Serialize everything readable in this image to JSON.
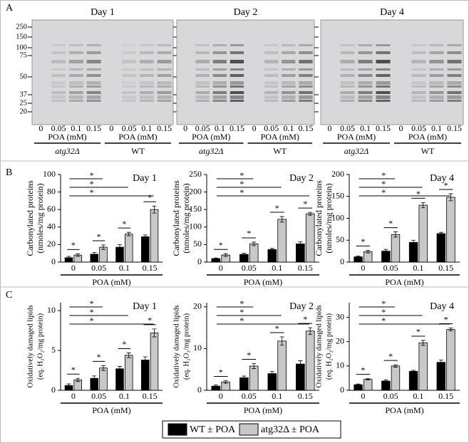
{
  "blots": {
    "panel_label": "A",
    "days": [
      "Day 1",
      "Day 2",
      "Day 4"
    ],
    "markers": [
      250,
      150,
      100,
      75,
      50,
      37,
      25,
      20
    ],
    "lanes": [
      "0",
      "0.05",
      "0.1",
      "0.15"
    ],
    "axis_label": "POA (mM)",
    "strains": [
      "atg32Δ",
      "WT"
    ]
  },
  "panel_labels": [
    "B",
    "C"
  ],
  "chart_data": [
    {
      "type": "bar",
      "title": "Day 1",
      "ylabel": [
        "Carbonylated proteins",
        "(nmoles/mg protein)"
      ],
      "xlabel": "POA (mM)",
      "categories": [
        "0",
        "0.05",
        "0.1",
        "0.15"
      ],
      "series": [
        {
          "name": "WT ± POA",
          "color": "#000000",
          "values": [
            5,
            9,
            17,
            29
          ],
          "errors": [
            1.5,
            2,
            3,
            2
          ]
        },
        {
          "name": "atg32Δ ± POA",
          "color": "#c8c8c8",
          "values": [
            8,
            17,
            32,
            60
          ],
          "errors": [
            1.5,
            2.5,
            2,
            4
          ]
        }
      ],
      "ylim": [
        0,
        100
      ],
      "yticks": [
        0,
        20,
        40,
        60,
        80,
        100
      ],
      "annotations": [
        "*",
        "*",
        "*",
        "*",
        "*",
        "*",
        "*"
      ]
    },
    {
      "type": "bar",
      "title": "Day 2",
      "ylabel": [
        "Carbonylated proteins",
        "(nmoles/mg protein)"
      ],
      "xlabel": "POA (mM)",
      "categories": [
        "0",
        "0.05",
        "0.1",
        "0.15"
      ],
      "series": [
        {
          "name": "WT ± POA",
          "color": "#000000",
          "values": [
            10,
            22,
            36,
            52
          ],
          "errors": [
            2,
            3,
            3,
            6
          ]
        },
        {
          "name": "atg32Δ ± POA",
          "color": "#c8c8c8",
          "values": [
            20,
            52,
            122,
            138
          ],
          "errors": [
            4,
            5,
            8,
            4
          ]
        }
      ],
      "ylim": [
        0,
        250
      ],
      "yticks": [
        0,
        50,
        100,
        150,
        200,
        250
      ],
      "annotations": [
        "*",
        "*",
        "*",
        "*",
        "*",
        "*",
        "*"
      ]
    },
    {
      "type": "bar",
      "title": "Day 4",
      "ylabel": [
        "Carbonylated proteins",
        "(nmoles/mg protein)"
      ],
      "xlabel": "POA (mM)",
      "categories": [
        "0",
        "0.05",
        "0.1",
        "0.15"
      ],
      "series": [
        {
          "name": "WT ± POA",
          "color": "#000000",
          "values": [
            12,
            25,
            45,
            65
          ],
          "errors": [
            2,
            4,
            5,
            3
          ]
        },
        {
          "name": "atg32Δ ± POA",
          "color": "#c8c8c8",
          "values": [
            24,
            63,
            130,
            148
          ],
          "errors": [
            3,
            6,
            6,
            8
          ]
        }
      ],
      "ylim": [
        0,
        200
      ],
      "yticks": [
        0,
        50,
        100,
        150,
        200
      ],
      "annotations": [
        "*",
        "*",
        "*",
        "*",
        "*",
        "*",
        "*"
      ]
    },
    {
      "type": "bar",
      "title": "Day 1",
      "ylabel": [
        "Oxidatively damaged lipids",
        "(eq. H₂O₂/mg protein)"
      ],
      "xlabel": "POA (mM)",
      "categories": [
        "0",
        "0.05",
        "0.1",
        "0.15"
      ],
      "series": [
        {
          "name": "WT ± POA",
          "color": "#000000",
          "values": [
            0.6,
            1.5,
            2.7,
            3.8
          ],
          "errors": [
            0.2,
            0.3,
            0.3,
            0.4
          ]
        },
        {
          "name": "atg32Δ ± POA",
          "color": "#c8c8c8",
          "values": [
            1.3,
            2.8,
            4.4,
            7.2
          ],
          "errors": [
            0.2,
            0.3,
            0.3,
            0.5
          ]
        }
      ],
      "ylim": [
        0,
        11
      ],
      "yticks": [
        0,
        5,
        10
      ],
      "annotations": [
        "*",
        "*",
        "*",
        "*",
        "*",
        "*",
        "*"
      ]
    },
    {
      "type": "bar",
      "title": "Day 2",
      "ylabel": [
        "Oxidatively damaged lipids",
        "(eq. H₂O₂/mg protein)"
      ],
      "xlabel": "POA (mM)",
      "categories": [
        "0",
        "0.05",
        "0.1",
        "0.15"
      ],
      "series": [
        {
          "name": "WT ± POA",
          "color": "#000000",
          "values": [
            1,
            3,
            4,
            6.3
          ],
          "errors": [
            0.3,
            0.4,
            0.5,
            0.8
          ]
        },
        {
          "name": "atg32Δ ± POA",
          "color": "#c8c8c8",
          "values": [
            2,
            5.8,
            11.8,
            14.2
          ],
          "errors": [
            0.3,
            0.6,
            1,
            0.8
          ]
        }
      ],
      "ylim": [
        0,
        21
      ],
      "yticks": [
        0,
        10,
        20
      ],
      "annotations": [
        "*",
        "*",
        "*",
        "*",
        "*",
        "*",
        "*"
      ]
    },
    {
      "type": "bar",
      "title": "Day 4",
      "ylabel": [
        "Oxidatively damaged lipids",
        "(eq. H₂O₂/mg protein)"
      ],
      "xlabel": "POA (mM)",
      "categories": [
        "0",
        "0.05",
        "0.1",
        "0.15"
      ],
      "series": [
        {
          "name": "WT ± POA",
          "color": "#000000",
          "values": [
            2.3,
            3.8,
            7.8,
            11.5
          ],
          "errors": [
            0.3,
            0.5,
            0.4,
            0.9
          ]
        },
        {
          "name": "atg32Δ ± POA",
          "color": "#c8c8c8",
          "values": [
            4.5,
            10,
            19.5,
            25
          ],
          "errors": [
            0.3,
            0.5,
            1,
            0.6
          ]
        }
      ],
      "ylim": [
        0,
        36
      ],
      "yticks": [
        0,
        10,
        20,
        30
      ],
      "annotations": [
        "*",
        "*",
        "*",
        "*",
        "*",
        "*",
        "*"
      ]
    }
  ]
}
